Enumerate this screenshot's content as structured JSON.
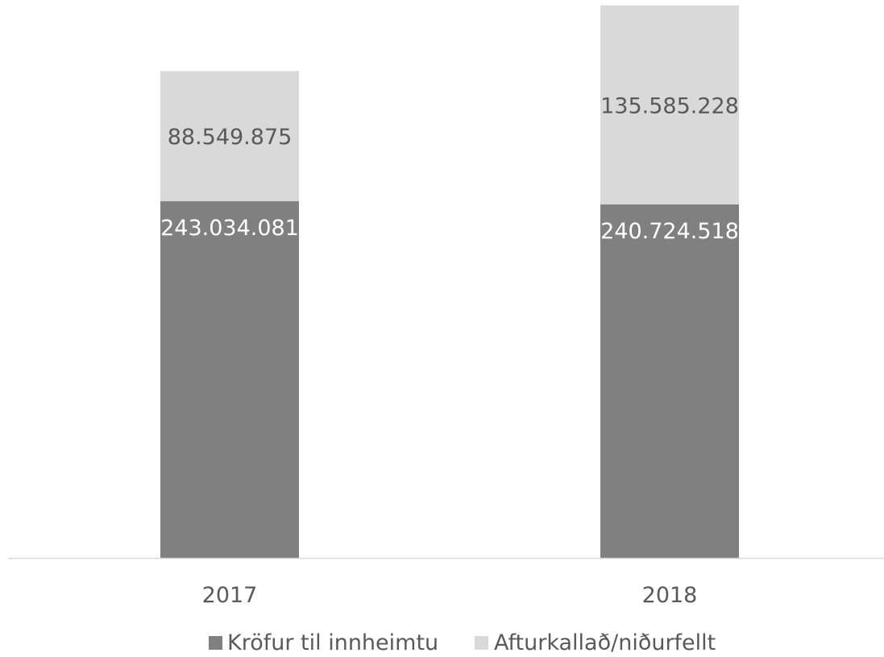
{
  "chart_data": {
    "type": "bar",
    "stacked": true,
    "categories": [
      "2017",
      "2018"
    ],
    "series": [
      {
        "name": "Kröfur til innheimtu",
        "values": [
          243034081,
          240724518
        ],
        "labels": [
          "243.034.081",
          "240.724.518"
        ],
        "color": "#808080",
        "label_color": "#ffffff"
      },
      {
        "name": "Afturkallað/niðurfellt",
        "values": [
          88549875,
          135585228
        ],
        "labels": [
          "88.549.875",
          "135.585.228"
        ],
        "color": "#d9d9d9",
        "label_color": "#595959"
      }
    ],
    "ylim": [
      0,
      380000000
    ],
    "axis_color": "#d9d9d9",
    "tick_label_color": "#595959",
    "grid": false,
    "legend": "bottom"
  }
}
